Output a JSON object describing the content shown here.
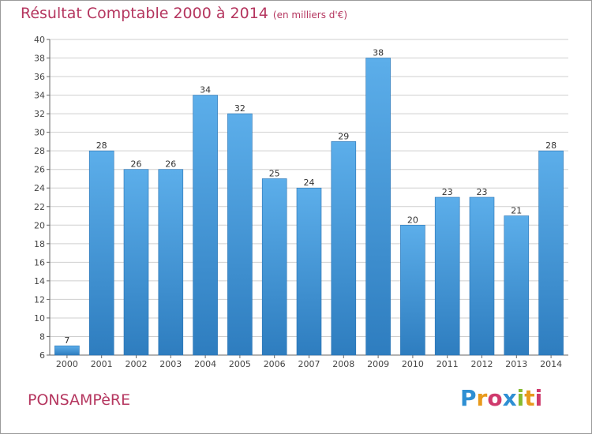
{
  "header": {
    "title": "Résultat Comptable 2000 à 2014",
    "subtitle": "(en milliers d'€)"
  },
  "footer": {
    "commune": "PONSAMPèRE",
    "logo_letters": [
      "P",
      "r",
      "o",
      "x",
      "i",
      "t",
      "i"
    ],
    "logo_colors": [
      "#2e8fd3",
      "#e89a1c",
      "#cf3a6d",
      "#2e8fd3",
      "#86bb2e",
      "#e89a1c",
      "#cf3a6d"
    ]
  },
  "colors": {
    "title": "#b5365f",
    "bar_top": "#5caeea",
    "bar_bottom": "#2e7dbf",
    "bar_border": "#2a73b3",
    "grid": "#cfcfcf",
    "axis": "#666666"
  },
  "chart_data": {
    "type": "bar",
    "title": "Résultat Comptable 2000 à 2014",
    "xlabel": "",
    "ylabel": "(en milliers d'€)",
    "categories": [
      "2000",
      "2001",
      "2002",
      "2003",
      "2004",
      "2005",
      "2006",
      "2007",
      "2008",
      "2009",
      "2010",
      "2011",
      "2012",
      "2013",
      "2014"
    ],
    "values": [
      7,
      28,
      26,
      26,
      34,
      32,
      25,
      24,
      29,
      38,
      20,
      23,
      23,
      21,
      28
    ],
    "ylim": [
      6,
      40
    ],
    "yticks": [
      6,
      8,
      10,
      12,
      14,
      16,
      18,
      20,
      22,
      24,
      26,
      28,
      30,
      32,
      34,
      36,
      38,
      40
    ],
    "grid": true
  }
}
